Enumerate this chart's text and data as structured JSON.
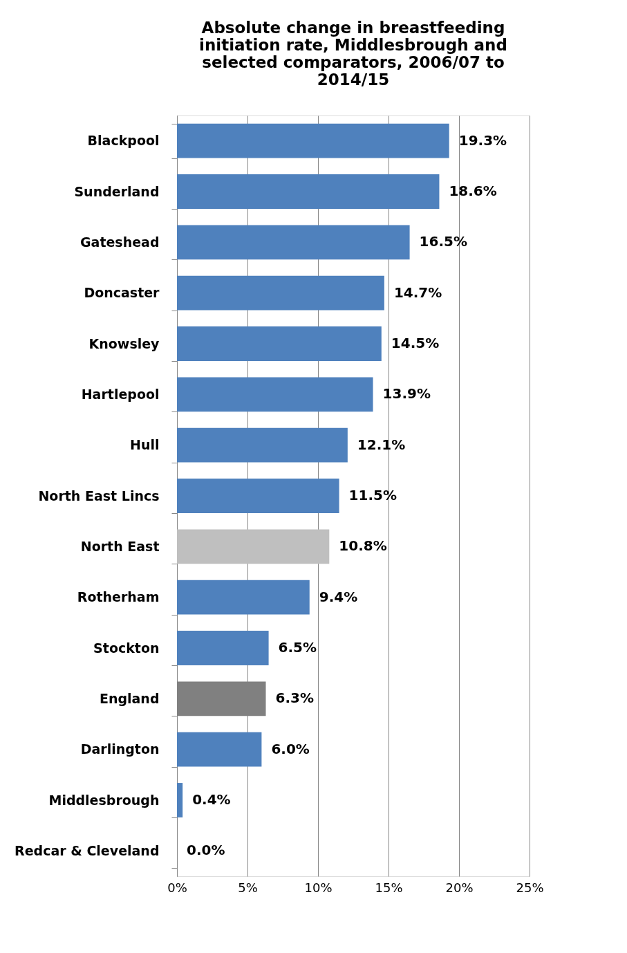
{
  "chart_data": {
    "type": "bar",
    "orientation": "horizontal",
    "title": "Absolute change in breastfeeding initiation rate, Middlesbrough and selected comparators, 2006/07 to 2014/15",
    "categories": [
      "Blackpool",
      "Sunderland",
      "Gateshead",
      "Doncaster",
      "Knowsley",
      "Hartlepool",
      "Hull",
      "North East Lincs",
      "North East",
      "Rotherham",
      "Stockton",
      "England",
      "Darlington",
      "Middlesbrough",
      "Redcar & Cleveland"
    ],
    "values": [
      19.3,
      18.6,
      16.5,
      14.7,
      14.5,
      13.9,
      12.1,
      11.5,
      10.8,
      9.4,
      6.5,
      6.3,
      6.0,
      0.4,
      0.0
    ],
    "value_labels": [
      "19.3%",
      "18.6%",
      "16.5%",
      "14.7%",
      "14.5%",
      "13.9%",
      "12.1%",
      "11.5%",
      "10.8%",
      "9.4%",
      "6.5%",
      "6.3%",
      "6.0%",
      "0.4%",
      "0.0%"
    ],
    "colors": [
      "#4f81bd",
      "#4f81bd",
      "#4f81bd",
      "#4f81bd",
      "#4f81bd",
      "#4f81bd",
      "#4f81bd",
      "#4f81bd",
      "#bfbfbf",
      "#4f81bd",
      "#4f81bd",
      "#808080",
      "#4f81bd",
      "#4f81bd",
      "#4f81bd"
    ],
    "xlim": [
      0,
      25
    ],
    "xticks": [
      {
        "value": 0,
        "label": "0%"
      },
      {
        "value": 5,
        "label": "5%"
      },
      {
        "value": 10,
        "label": "10%"
      },
      {
        "value": 15,
        "label": "15%"
      },
      {
        "value": 20,
        "label": "20%"
      },
      {
        "value": 25,
        "label": "25%"
      }
    ],
    "grid": "x"
  }
}
